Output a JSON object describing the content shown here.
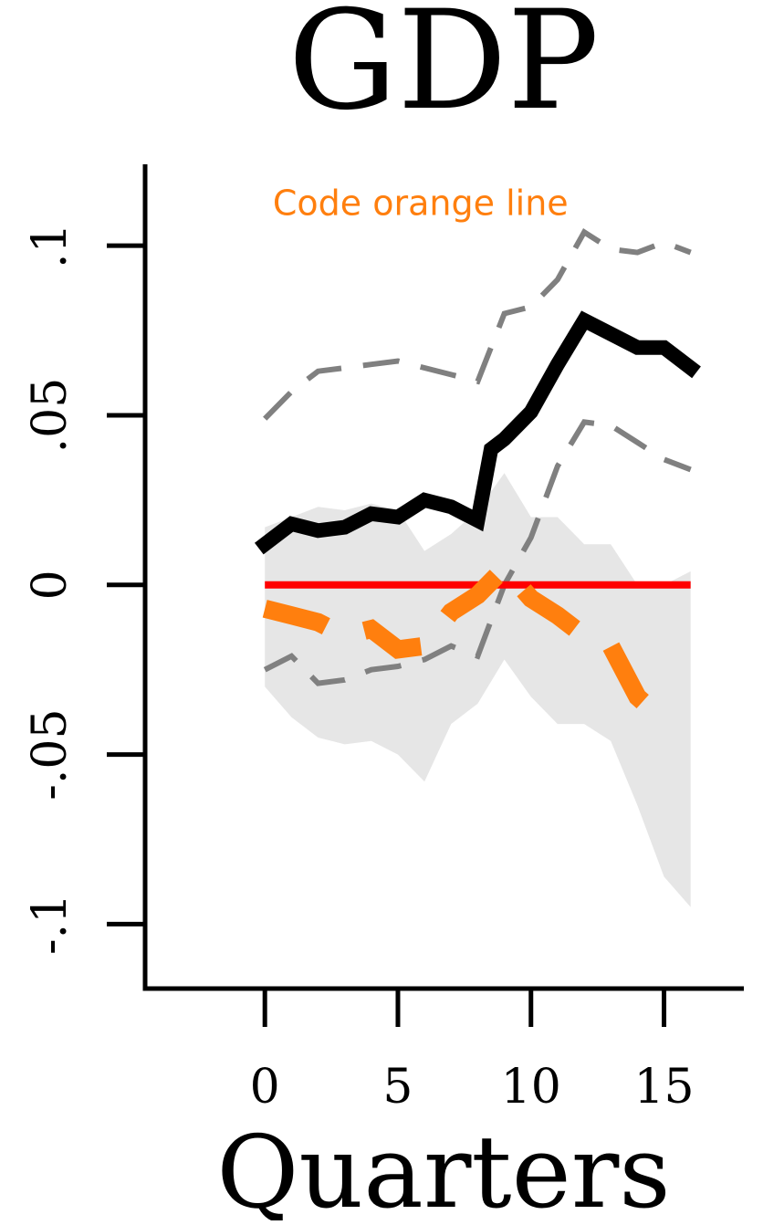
{
  "chart_data": {
    "type": "line",
    "title": "GDP",
    "xlabel": "Quarters",
    "ylabel": "",
    "xlim": [
      -4.5,
      18
    ],
    "ylim": [
      -0.119,
      0.124
    ],
    "x_ticks": [
      0,
      5,
      10,
      15
    ],
    "x_tick_labels": [
      "0",
      "5",
      "10",
      "15"
    ],
    "y_ticks": [
      0.1,
      0.05,
      0,
      -0.05,
      -0.1
    ],
    "y_tick_labels": [
      ".1",
      ".05",
      "0",
      "-.05",
      "-.1"
    ],
    "grid": false,
    "legend": "none",
    "annotation": {
      "text": "Code orange line",
      "x": 0.3,
      "y": 0.109,
      "color": "#ff7f0e"
    },
    "band": {
      "color": "#e6e6e6",
      "upper": [
        [
          0,
          0.017
        ],
        [
          1,
          0.02
        ],
        [
          2,
          0.023
        ],
        [
          3,
          0.022
        ],
        [
          4,
          0.024
        ],
        [
          5,
          0.022
        ],
        [
          6,
          0.01
        ],
        [
          7,
          0.015
        ],
        [
          8,
          0.022
        ],
        [
          9,
          0.033
        ],
        [
          10,
          0.02
        ],
        [
          11,
          0.02
        ],
        [
          12,
          0.012
        ],
        [
          13,
          0.012
        ],
        [
          14,
          0.0
        ],
        [
          15,
          0.0
        ],
        [
          16,
          0.004
        ]
      ],
      "lower": [
        [
          0,
          -0.03
        ],
        [
          1,
          -0.039
        ],
        [
          2,
          -0.045
        ],
        [
          3,
          -0.047
        ],
        [
          4,
          -0.046
        ],
        [
          5,
          -0.05
        ],
        [
          6,
          -0.058
        ],
        [
          7,
          -0.041
        ],
        [
          8,
          -0.035
        ],
        [
          9,
          -0.022
        ],
        [
          10,
          -0.033
        ],
        [
          11,
          -0.041
        ],
        [
          12,
          -0.041
        ],
        [
          13,
          -0.046
        ],
        [
          14,
          -0.065
        ],
        [
          15,
          -0.086
        ],
        [
          16,
          -0.095
        ]
      ]
    },
    "zero_line": {
      "y": 0,
      "x_range": [
        0,
        16
      ],
      "color": "#ff0000"
    },
    "series": [
      {
        "color": "#000000",
        "style": "solid",
        "points": [
          [
            0,
            0.012
          ],
          [
            1,
            0.018
          ],
          [
            2,
            0.016
          ],
          [
            3,
            0.017
          ],
          [
            4,
            0.021
          ],
          [
            5,
            0.02
          ],
          [
            6,
            0.025
          ],
          [
            7,
            0.023
          ],
          [
            8,
            0.019
          ],
          [
            8.5,
            0.04
          ],
          [
            9,
            0.043
          ],
          [
            9.5,
            0.047
          ],
          [
            10,
            0.051
          ],
          [
            11,
            0.065
          ],
          [
            12,
            0.078
          ],
          [
            13,
            0.074
          ],
          [
            14,
            0.07
          ],
          [
            15,
            0.07
          ],
          [
            16,
            0.064
          ]
        ]
      },
      {
        "color": "#808080",
        "style": "dashed",
        "points": [
          [
            0,
            0.049
          ],
          [
            1,
            0.057
          ],
          [
            2,
            0.063
          ],
          [
            3,
            0.064
          ],
          [
            4,
            0.065
          ],
          [
            5,
            0.066
          ],
          [
            6,
            0.064
          ],
          [
            7,
            0.062
          ],
          [
            8,
            0.06
          ],
          [
            9,
            0.08
          ],
          [
            10,
            0.082
          ],
          [
            11,
            0.09
          ],
          [
            12,
            0.104
          ],
          [
            13,
            0.099
          ],
          [
            14,
            0.098
          ],
          [
            15,
            0.101
          ],
          [
            16,
            0.098
          ]
        ]
      },
      {
        "color": "#808080",
        "style": "dashed",
        "points": [
          [
            0,
            -0.025
          ],
          [
            1,
            -0.021
          ],
          [
            2,
            -0.029
          ],
          [
            3,
            -0.028
          ],
          [
            4,
            -0.025
          ],
          [
            5,
            -0.024
          ],
          [
            6,
            -0.022
          ],
          [
            7,
            -0.018
          ],
          [
            8,
            -0.021
          ],
          [
            9,
            0.0
          ],
          [
            10,
            0.014
          ],
          [
            11,
            0.035
          ],
          [
            12,
            0.048
          ],
          [
            13,
            0.047
          ],
          [
            14,
            0.042
          ],
          [
            15,
            0.037
          ],
          [
            16,
            0.034
          ]
        ]
      },
      {
        "color": "#ff7f0e",
        "style": "dashed",
        "points": [
          [
            0,
            -0.007
          ],
          [
            1,
            -0.009
          ],
          [
            2,
            -0.011
          ],
          [
            3,
            -0.015
          ],
          [
            4,
            -0.013
          ],
          [
            5,
            -0.019
          ],
          [
            6,
            -0.018
          ],
          [
            7,
            -0.008
          ],
          [
            8,
            -0.003
          ],
          [
            9,
            0.005
          ],
          [
            10,
            -0.004
          ],
          [
            11,
            -0.009
          ],
          [
            12,
            -0.015
          ],
          [
            13,
            -0.018
          ],
          [
            14,
            -0.033
          ],
          [
            15,
            -0.04
          ]
        ]
      }
    ]
  }
}
